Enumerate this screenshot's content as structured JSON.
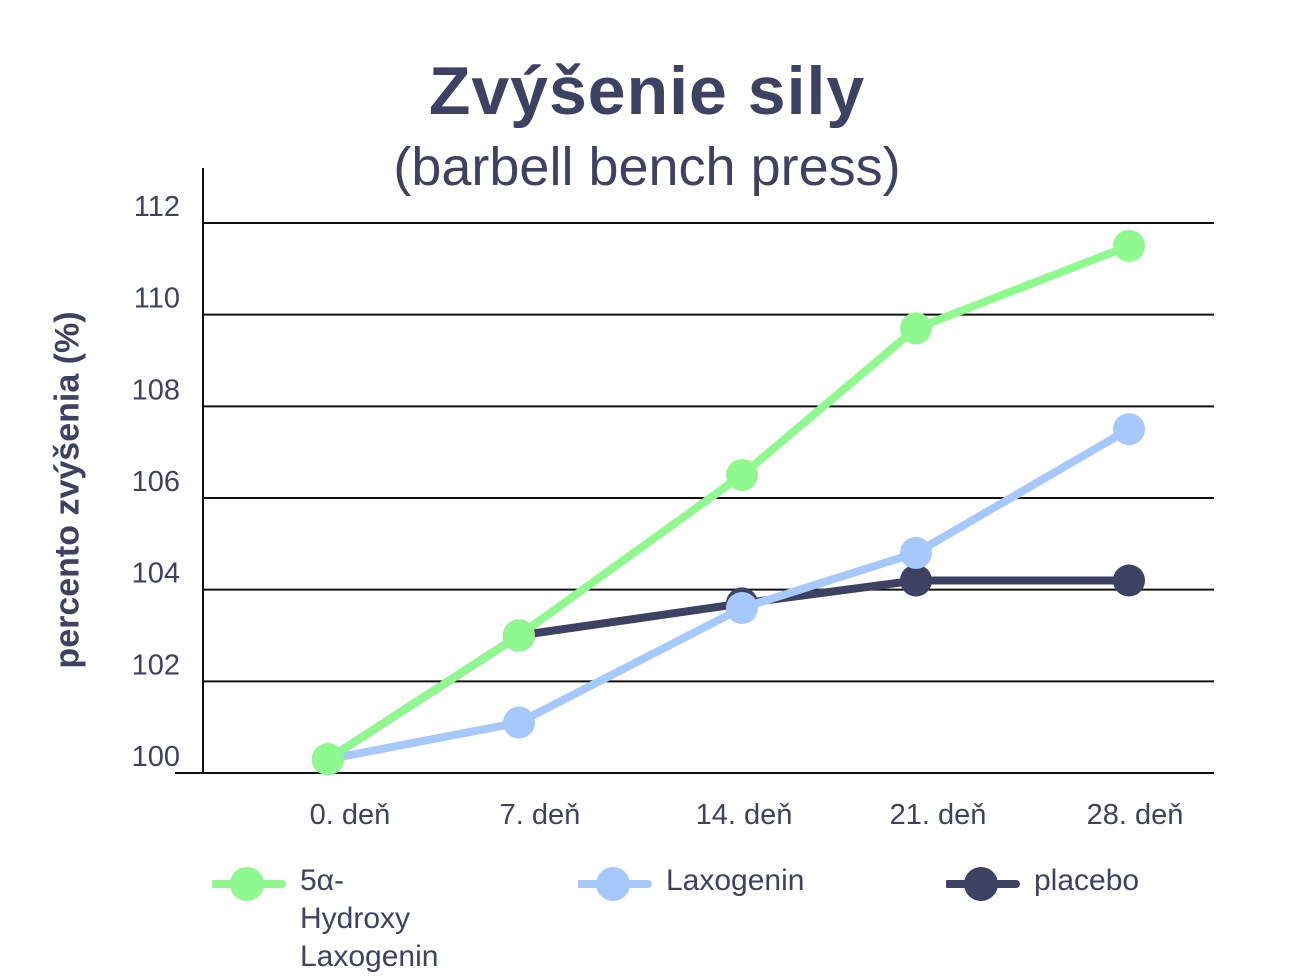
{
  "chart_data": {
    "type": "line",
    "title": "Zvýšenie sily",
    "subtitle": "(barbell bench press)",
    "xlabel": "",
    "ylabel": "percento zvýšenia (%)",
    "categories": [
      "0. deň",
      "7. deň",
      "14. deň",
      "21. deň",
      "28. deň"
    ],
    "yticks": [
      "100",
      "102",
      "104",
      "106",
      "108",
      "110",
      "112"
    ],
    "ylim": [
      100,
      112
    ],
    "grid": true,
    "legend_position": "bottom",
    "series": [
      {
        "name": "5α-Hydroxy\nLaxogenin",
        "color": "#8ff98f",
        "values": [
          100.3,
          103.0,
          106.5,
          109.7,
          111.5
        ]
      },
      {
        "name": "Laxogenin",
        "color": "#a6c8fb",
        "values": [
          100.3,
          101.1,
          103.6,
          104.8,
          107.5
        ]
      },
      {
        "name": "placebo",
        "color": "#3d4262",
        "values": [
          100.3,
          103.0,
          103.7,
          104.2,
          104.2
        ]
      }
    ]
  }
}
